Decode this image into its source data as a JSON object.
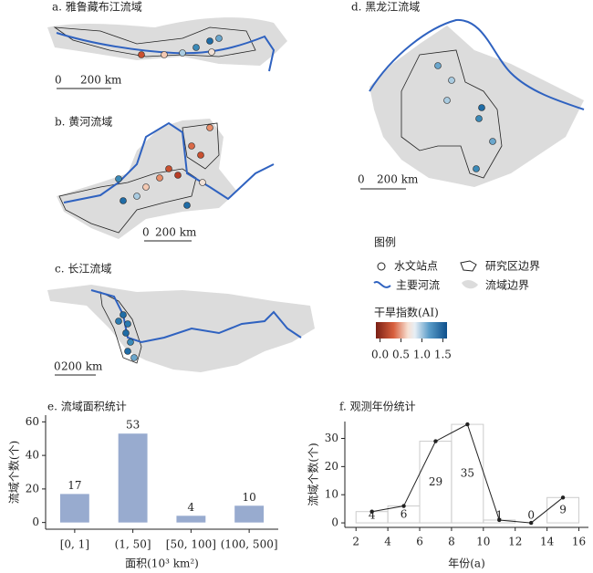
{
  "maps": {
    "a": {
      "title": "a. 雅鲁藏布江流域",
      "scale_start": "0",
      "scale_end": "200 km"
    },
    "b": {
      "title": "b. 黄河流域",
      "scale_start": "0",
      "scale_end": "200 km"
    },
    "c": {
      "title": "c. 长江流域",
      "scale_start": "0",
      "scale_end": "200 km"
    },
    "d": {
      "title": "d. 黑龙江流域",
      "scale_start": "0",
      "scale_end": "200 km"
    }
  },
  "legend": {
    "title": "图例",
    "items": [
      "水文站点",
      "研究区边界",
      "主要河流",
      "流域边界"
    ],
    "colorbar": {
      "title": "干旱指数(AI)",
      "range": [
        -0.1,
        1.6
      ],
      "ticks": [
        {
          "value": 0,
          "label": "0.0"
        },
        0.5,
        {
          "value": 1,
          "label": "1.0"
        },
        1.5
      ]
    }
  },
  "chart_data": [
    {
      "type": "bar",
      "title": "e. 流域面积统计",
      "y_label": "流域个数(个)",
      "x_label": "面积(10³ km²)",
      "categories": [
        "[0, 1]",
        "(1, 50]",
        "[50, 100]",
        "(100, 500]"
      ],
      "values": [
        17,
        53,
        4,
        10
      ],
      "color": "#98abcf",
      "ylim": [
        -4,
        64
      ],
      "yticks": [
        0,
        20,
        40,
        60
      ]
    },
    {
      "type": "histogram",
      "title": "f. 观测年份统计",
      "y_label": "流域个数(个)",
      "x_label": "年份(a)",
      "bins": [
        2,
        4,
        6,
        8,
        10,
        12,
        14,
        16
      ],
      "values": [
        4,
        6,
        29,
        35,
        1,
        0,
        9
      ],
      "color": "#cccccc",
      "line_color": "#222222",
      "xlim": [
        1.3,
        16.6
      ],
      "xticks": [
        2,
        4,
        6,
        8,
        10,
        12,
        14,
        16
      ],
      "ylim": [
        -1.6,
        36
      ],
      "yticks": [
        0,
        10,
        20,
        30
      ]
    }
  ]
}
